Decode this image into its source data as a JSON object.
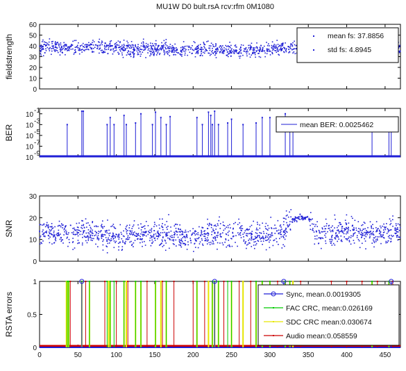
{
  "chart_data": [
    {
      "type": "scatter",
      "title": "MU1W D0 bult.rsA rcv:rfm 0M1080",
      "ylabel": "fieldstrength",
      "xlim": [
        0,
        470
      ],
      "ylim": [
        0,
        60
      ],
      "xticks": [
        0,
        50,
        100,
        150,
        200,
        250,
        300,
        350,
        400,
        450
      ],
      "yticks": [
        0,
        10,
        20,
        30,
        40,
        50,
        60
      ],
      "series": [
        {
          "name": "mean fs: 37.8856",
          "color": "#1f1fd6",
          "x": [
            0,
            20,
            40,
            60,
            80,
            100,
            120,
            140,
            160,
            180,
            200,
            220,
            240,
            260,
            280,
            300,
            320,
            340,
            360,
            380,
            400,
            420,
            440,
            460
          ],
          "y": [
            38,
            39,
            38,
            39,
            38,
            38,
            37,
            37,
            38,
            36,
            36,
            37,
            36,
            35,
            36,
            37,
            38,
            39,
            40,
            38,
            37,
            38,
            39,
            38
          ]
        },
        {
          "name": "std fs: 4.8945",
          "color": "#1f1fd6",
          "x": [],
          "y": []
        }
      ],
      "legend_position": "top-right"
    },
    {
      "type": "line",
      "ylabel": "BER",
      "xlim": [
        0,
        470
      ],
      "yscale": "log",
      "ylim": [
        1e-09,
        1
      ],
      "ytick_labels": [
        "10",
        "10",
        "10",
        "10",
        "10"
      ],
      "ytick_exponents": [
        "-1",
        "-3",
        "-5",
        "-7",
        "-9"
      ],
      "baseline": 1e-09,
      "series": [
        {
          "name": "mean BER: 0.0025462",
          "color": "#1f1fd6",
          "x": [
            36,
            55,
            57,
            88,
            92,
            97,
            110,
            113,
            125,
            132,
            147,
            151,
            158,
            165,
            170,
            205,
            212,
            220,
            223,
            225,
            228,
            233,
            245,
            250,
            265,
            282,
            290,
            300,
            320,
            326,
            330,
            433,
            455,
            458
          ],
          "y": [
            0.001,
            0.3,
            0.3,
            0.001,
            0.02,
            0.001,
            0.05,
            0.001,
            0.002,
            0.1,
            0.001,
            0.2,
            0.02,
            0.001,
            0.03,
            0.02,
            0.001,
            0.2,
            0.05,
            0.001,
            0.3,
            0.001,
            0.002,
            0.01,
            0.001,
            0.002,
            0.02,
            0.02,
            0.1,
            0.02,
            0.001,
            0.001,
            0.002,
            0.0005
          ]
        }
      ],
      "legend_position": "top-right"
    },
    {
      "type": "scatter",
      "ylabel": "SNR",
      "xlim": [
        0,
        470
      ],
      "ylim": [
        0,
        30
      ],
      "yticks": [
        0,
        10,
        20,
        30
      ],
      "series": [
        {
          "name": "",
          "color": "#1f1fd6",
          "x": [
            0,
            20,
            40,
            60,
            80,
            100,
            120,
            140,
            160,
            180,
            200,
            220,
            240,
            260,
            280,
            300,
            320,
            330,
            340,
            350,
            360,
            380,
            400,
            420,
            440,
            460
          ],
          "y": [
            14,
            13,
            12,
            13,
            12,
            11,
            12,
            12,
            13,
            12,
            11,
            12,
            12,
            13,
            12,
            12,
            14,
            19,
            20,
            20,
            12,
            13,
            14,
            13,
            13,
            14
          ]
        }
      ]
    },
    {
      "type": "line",
      "ylabel": "RSTA errors",
      "xlim": [
        0,
        470
      ],
      "ylim": [
        0,
        1
      ],
      "yticks": [
        0,
        0.5,
        1
      ],
      "series": [
        {
          "name": "Sync, mean.0.0019305",
          "color": "#1f1fd6",
          "x": [
            55,
            228,
            318,
            458
          ],
          "y": [
            1,
            1,
            1,
            1
          ]
        },
        {
          "name": "FAC CRC, mean:0.026169",
          "color": "#00cc00",
          "x": [
            36,
            38,
            55,
            65,
            88,
            92,
            97,
            110,
            125,
            132,
            151,
            165,
            205,
            225,
            228,
            233,
            245,
            250,
            282,
            290,
            300,
            320,
            326,
            433,
            455
          ],
          "y": [
            1,
            1,
            1,
            1,
            1,
            1,
            1,
            1,
            1,
            1,
            1,
            1,
            1,
            1,
            1,
            1,
            1,
            1,
            1,
            1,
            1,
            1,
            1,
            1,
            1
          ]
        },
        {
          "name": "SDC CRC mean:0.030674",
          "color": "#e6e600",
          "x": [
            35,
            36,
            38,
            55,
            65,
            90,
            92,
            110,
            113,
            125,
            132,
            151,
            158,
            165,
            205,
            220,
            225,
            228,
            233,
            250,
            265,
            282,
            290,
            300,
            320,
            326,
            330,
            433,
            455
          ],
          "y": [
            1,
            1,
            1,
            1,
            1,
            1,
            1,
            1,
            1,
            1,
            1,
            1,
            1,
            1,
            1,
            1,
            1,
            1,
            1,
            1,
            1,
            1,
            1,
            1,
            1,
            1,
            1,
            1,
            1
          ]
        },
        {
          "name": "Audio mean:0.058559",
          "color": "#cc0000",
          "x": [
            40,
            60,
            85,
            100,
            115,
            140,
            160,
            175,
            200,
            215,
            240,
            260,
            275,
            300,
            310,
            340,
            380,
            400,
            420,
            440,
            460
          ],
          "y": [
            1,
            1,
            1,
            1,
            1,
            1,
            1,
            1,
            1,
            1,
            1,
            1,
            1,
            1,
            1,
            1,
            1,
            1,
            1,
            1,
            1
          ]
        }
      ],
      "legend_position": "bottom-right"
    }
  ]
}
